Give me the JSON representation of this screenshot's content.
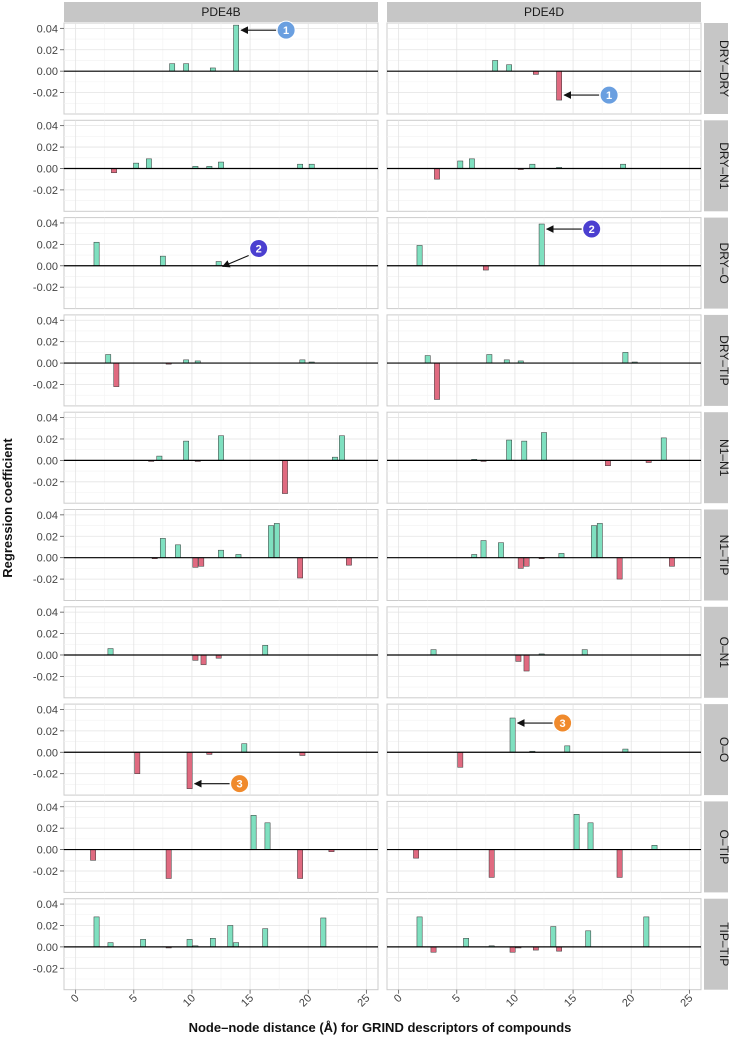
{
  "chart_data": {
    "type": "bar",
    "xlabel": "Node–node distance (Å) for GRIND descriptors of compounds",
    "ylabel": "Regression coefficient",
    "xlim": [
      -1,
      26
    ],
    "ylim": [
      -0.04,
      0.045
    ],
    "x_ticks": [
      0,
      5,
      10,
      15,
      20,
      25
    ],
    "y_ticks": [
      0.04,
      0.02,
      0.0,
      -0.02
    ],
    "y_tick_labels": [
      "0.04",
      "0.02",
      "0.00",
      "-0.02"
    ],
    "columns": [
      "PDE4B",
      "PDE4D"
    ],
    "rows": [
      "DRY–DRY",
      "DRY–N1",
      "DRY–O",
      "DRY–TIP",
      "N1–N1",
      "N1–TIP",
      "O–N1",
      "O–O",
      "O–TIP",
      "TIP–TIP"
    ],
    "bar_width": 0.45,
    "colors": {
      "positive": "#7fe0c0",
      "negative": "#e06a80",
      "stroke": "#333333"
    },
    "panels": {
      "PDE4B": [
        [
          [
            8.3,
            0.007
          ],
          [
            9.5,
            0.007
          ],
          [
            11.8,
            0.003
          ],
          [
            13.8,
            0.043
          ]
        ],
        [
          [
            3.3,
            -0.004
          ],
          [
            5.2,
            0.005
          ],
          [
            6.3,
            0.009
          ],
          [
            10.3,
            0.002
          ],
          [
            11.5,
            0.002
          ],
          [
            12.5,
            0.006
          ],
          [
            19.3,
            0.004
          ],
          [
            20.3,
            0.004
          ]
        ],
        [
          [
            1.8,
            0.022
          ],
          [
            7.5,
            0.009
          ],
          [
            12.3,
            0.004
          ]
        ],
        [
          [
            2.8,
            0.008
          ],
          [
            3.5,
            -0.022
          ],
          [
            8.0,
            -0.001
          ],
          [
            9.5,
            0.003
          ],
          [
            10.5,
            0.002
          ],
          [
            19.5,
            0.003
          ],
          [
            20.3,
            0.001
          ]
        ],
        [
          [
            6.5,
            -0.001
          ],
          [
            7.2,
            0.004
          ],
          [
            9.5,
            0.018
          ],
          [
            10.5,
            -0.001
          ],
          [
            12.5,
            0.023
          ],
          [
            18.0,
            -0.031
          ],
          [
            22.3,
            0.003
          ],
          [
            22.9,
            0.023
          ]
        ],
        [
          [
            6.8,
            -0.001
          ],
          [
            7.5,
            0.018
          ],
          [
            8.8,
            0.012
          ],
          [
            10.3,
            -0.009
          ],
          [
            10.8,
            -0.008
          ],
          [
            12.5,
            0.007
          ],
          [
            14.0,
            0.003
          ],
          [
            16.8,
            0.03
          ],
          [
            17.3,
            0.032
          ],
          [
            19.3,
            -0.019
          ],
          [
            23.5,
            -0.007
          ]
        ],
        [
          [
            3.0,
            0.006
          ],
          [
            10.3,
            -0.005
          ],
          [
            11.0,
            -0.009
          ],
          [
            12.3,
            -0.003
          ],
          [
            16.3,
            0.009
          ]
        ],
        [
          [
            5.3,
            -0.02
          ],
          [
            9.8,
            -0.034
          ],
          [
            11.5,
            -0.002
          ],
          [
            14.5,
            0.008
          ],
          [
            19.5,
            -0.003
          ]
        ],
        [
          [
            1.5,
            -0.01
          ],
          [
            8.0,
            -0.027
          ],
          [
            15.3,
            0.032
          ],
          [
            16.5,
            0.025
          ],
          [
            19.3,
            -0.027
          ],
          [
            22.0,
            -0.002
          ]
        ],
        [
          [
            1.8,
            0.028
          ],
          [
            3.0,
            0.004
          ],
          [
            5.8,
            0.007
          ],
          [
            8.0,
            -0.001
          ],
          [
            9.8,
            0.007
          ],
          [
            10.3,
            0.001
          ],
          [
            11.8,
            0.008
          ],
          [
            13.3,
            0.02
          ],
          [
            13.8,
            0.004
          ],
          [
            16.3,
            0.017
          ],
          [
            21.3,
            0.027
          ]
        ]
      ],
      "PDE4D": [
        [
          [
            8.3,
            0.01
          ],
          [
            9.5,
            0.006
          ],
          [
            11.8,
            -0.003
          ],
          [
            13.8,
            -0.027
          ]
        ],
        [
          [
            3.3,
            -0.01
          ],
          [
            5.3,
            0.007
          ],
          [
            6.3,
            0.009
          ],
          [
            10.5,
            -0.001
          ],
          [
            11.5,
            0.004
          ],
          [
            13.8,
            0.001
          ],
          [
            19.3,
            0.004
          ]
        ],
        [
          [
            1.8,
            0.019
          ],
          [
            7.5,
            -0.004
          ],
          [
            12.3,
            0.039
          ]
        ],
        [
          [
            2.5,
            0.007
          ],
          [
            3.3,
            -0.034
          ],
          [
            7.8,
            0.008
          ],
          [
            9.3,
            0.003
          ],
          [
            10.5,
            0.002
          ],
          [
            19.5,
            0.01
          ],
          [
            20.3,
            0.001
          ]
        ],
        [
          [
            6.5,
            0.001
          ],
          [
            7.3,
            -0.001
          ],
          [
            9.5,
            0.019
          ],
          [
            10.8,
            0.018
          ],
          [
            12.5,
            0.026
          ],
          [
            18.0,
            -0.005
          ],
          [
            21.5,
            -0.002
          ],
          [
            22.8,
            0.021
          ]
        ],
        [
          [
            6.5,
            0.003
          ],
          [
            7.3,
            0.016
          ],
          [
            8.8,
            0.014
          ],
          [
            10.5,
            -0.01
          ],
          [
            11.0,
            -0.008
          ],
          [
            12.3,
            -0.001
          ],
          [
            14.0,
            0.004
          ],
          [
            16.8,
            0.03
          ],
          [
            17.3,
            0.032
          ],
          [
            19.0,
            -0.02
          ],
          [
            23.5,
            -0.008
          ]
        ],
        [
          [
            3.0,
            0.005
          ],
          [
            10.3,
            -0.006
          ],
          [
            11.0,
            -0.015
          ],
          [
            12.3,
            0.001
          ],
          [
            16.0,
            0.005
          ]
        ],
        [
          [
            5.3,
            -0.014
          ],
          [
            9.8,
            0.032
          ],
          [
            11.5,
            0.001
          ],
          [
            14.5,
            0.006
          ],
          [
            19.5,
            0.003
          ]
        ],
        [
          [
            1.5,
            -0.008
          ],
          [
            8.0,
            -0.026
          ],
          [
            15.3,
            0.033
          ],
          [
            16.5,
            0.025
          ],
          [
            19.0,
            -0.026
          ],
          [
            22.0,
            0.004
          ]
        ],
        [
          [
            1.8,
            0.028
          ],
          [
            3.0,
            -0.005
          ],
          [
            5.8,
            0.008
          ],
          [
            8.0,
            0.001
          ],
          [
            9.8,
            -0.005
          ],
          [
            10.3,
            -0.001
          ],
          [
            11.8,
            -0.003
          ],
          [
            13.3,
            0.019
          ],
          [
            13.8,
            -0.004
          ],
          [
            16.3,
            0.015
          ],
          [
            21.3,
            0.028
          ]
        ]
      ]
    },
    "annotations": [
      {
        "label": "1",
        "column": "PDE4B",
        "row": 0,
        "x": 13.8,
        "y": 0.043,
        "dir": "right",
        "color": "#6a9fe0"
      },
      {
        "label": "1",
        "column": "PDE4D",
        "row": 0,
        "x": 13.8,
        "y": -0.027,
        "dir": "right",
        "color": "#6a9fe0"
      },
      {
        "label": "2",
        "column": "PDE4B",
        "row": 2,
        "x": 12.3,
        "y": 0.004,
        "dir": "upright",
        "color": "#4b3fd0"
      },
      {
        "label": "2",
        "column": "PDE4D",
        "row": 2,
        "x": 12.3,
        "y": 0.039,
        "dir": "right",
        "color": "#4b3fd0"
      },
      {
        "label": "3",
        "column": "PDE4B",
        "row": 7,
        "x": 9.8,
        "y": -0.034,
        "dir": "right",
        "color": "#f08a2c"
      },
      {
        "label": "3",
        "column": "PDE4D",
        "row": 7,
        "x": 9.8,
        "y": 0.032,
        "dir": "right",
        "color": "#f08a2c"
      }
    ]
  }
}
